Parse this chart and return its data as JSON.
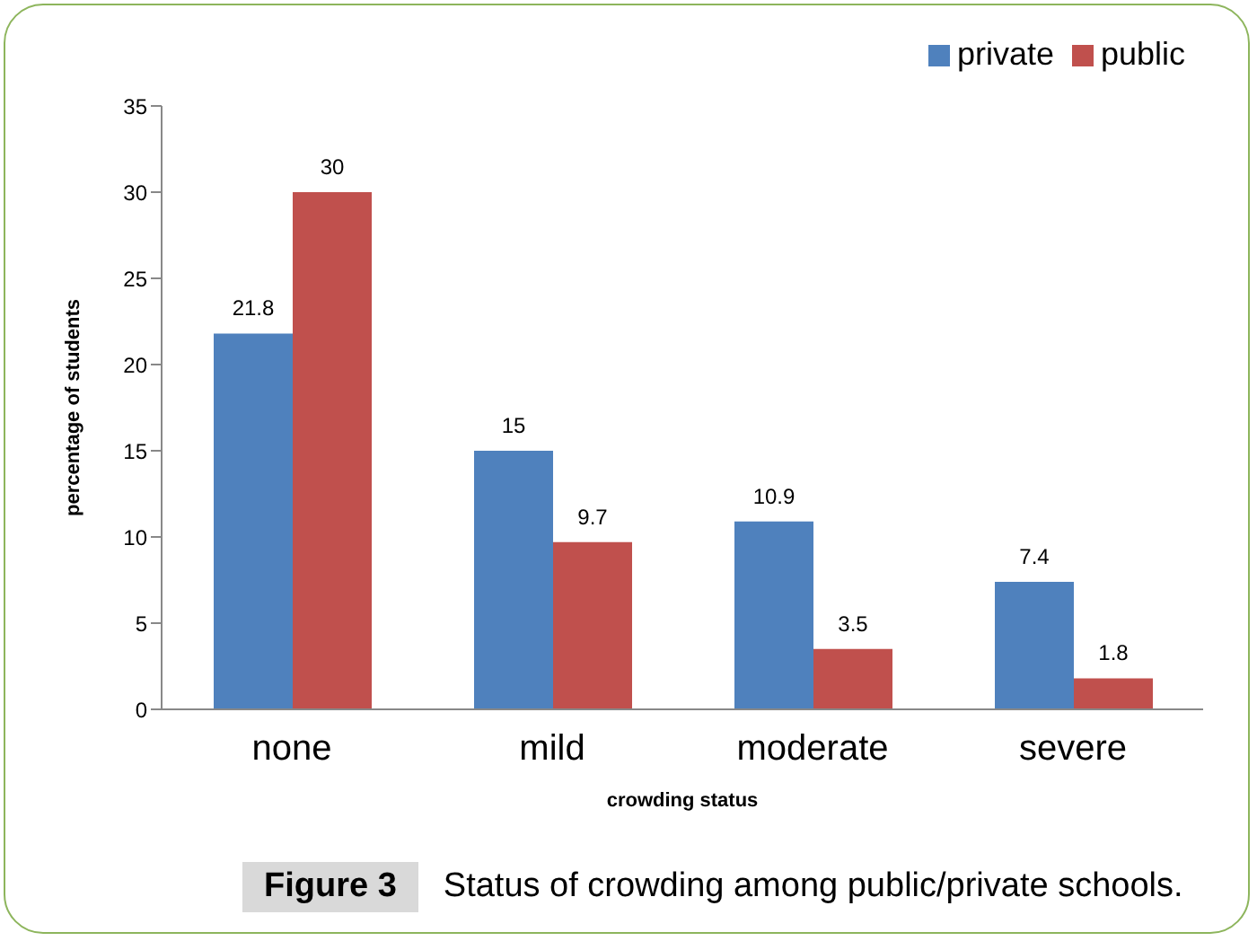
{
  "chart_data": {
    "type": "bar",
    "xlabel": "crowding status",
    "ylabel": "percentage of students",
    "categories": [
      "none",
      "mild",
      "moderate",
      "severe"
    ],
    "series": [
      {
        "name": "private",
        "color": "#4f81bd",
        "values": [
          21.8,
          15,
          10.9,
          7.4
        ]
      },
      {
        "name": "public",
        "color": "#c0504d",
        "values": [
          30,
          9.7,
          3.5,
          1.8
        ]
      }
    ],
    "ylim": [
      0,
      35
    ],
    "yticks": [
      0,
      5,
      10,
      15,
      20,
      25,
      30,
      35
    ],
    "legend": "top right",
    "data_labels": true,
    "annotations": [
      "Figure 3",
      "Status of crowding among public/private schools."
    ]
  }
}
